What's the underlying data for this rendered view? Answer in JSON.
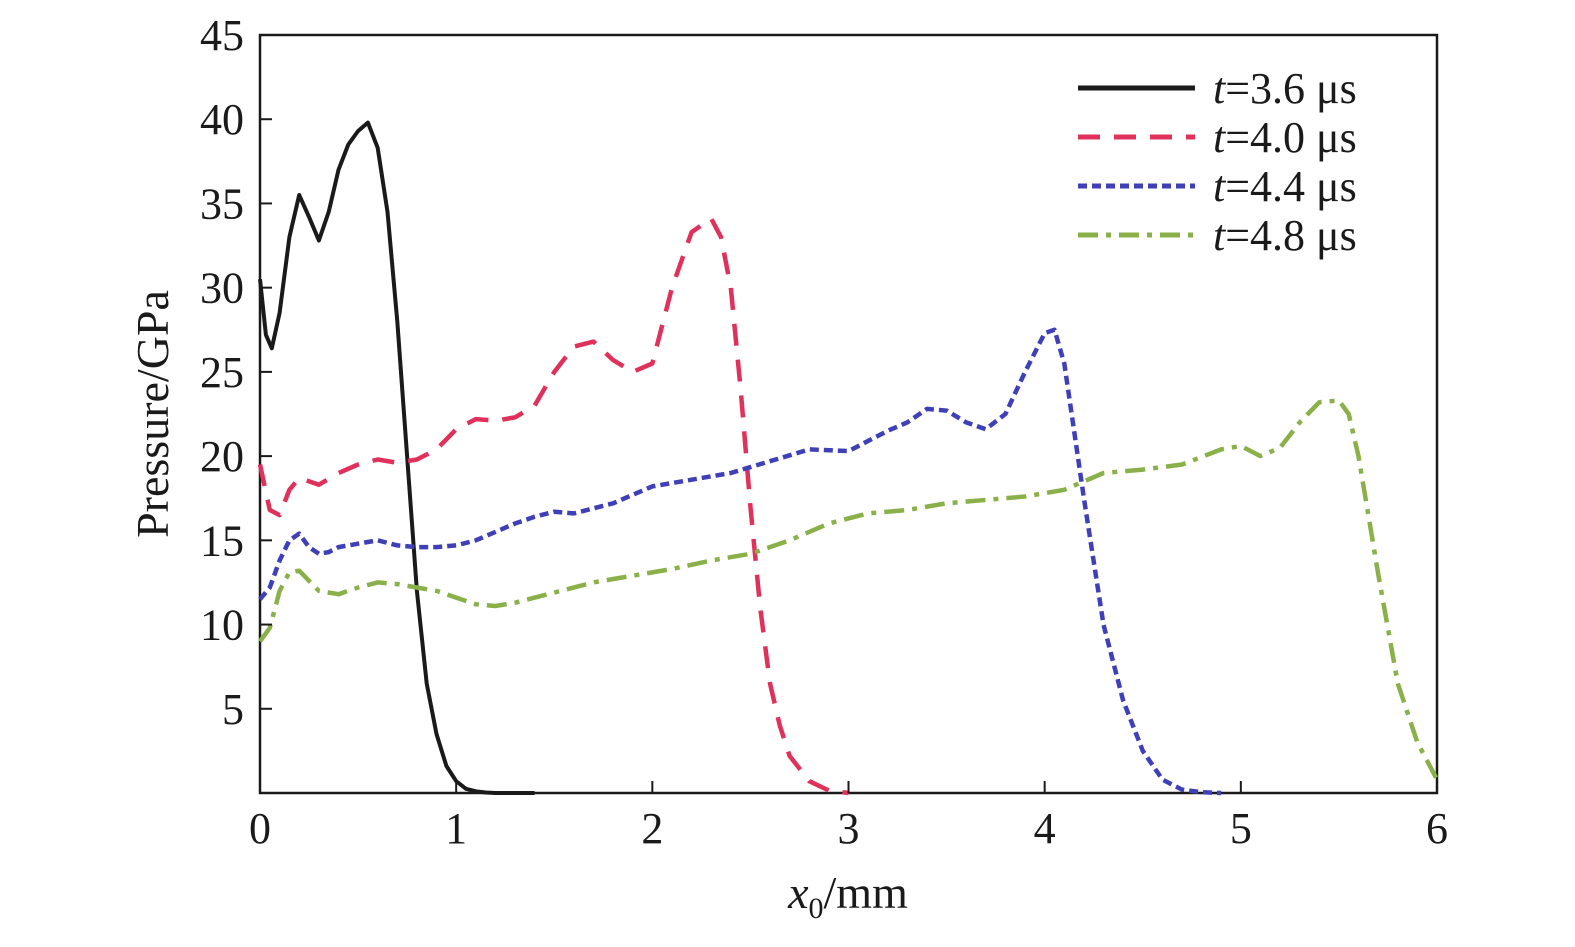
{
  "chart_data": {
    "type": "line",
    "xlabel_var": "x",
    "xlabel_sub": "0",
    "xlabel_unit": "/mm",
    "ylabel": "Pressure/GPa",
    "xlim": [
      0,
      6
    ],
    "ylim": [
      0,
      45
    ],
    "xticks": [
      0,
      1,
      2,
      3,
      4,
      5,
      6
    ],
    "yticks": [
      5,
      10,
      15,
      20,
      25,
      30,
      35,
      40,
      45
    ],
    "x_tick_labels": [
      "0",
      "1",
      "2",
      "3",
      "4",
      "5",
      "6"
    ],
    "y_tick_labels": [
      "5",
      "10",
      "15",
      "20",
      "25",
      "30",
      "35",
      "40",
      "45"
    ],
    "grid": false,
    "legend_position": "top-right",
    "series": [
      {
        "name": "t=3.6 μs",
        "label_var": "t",
        "label_rest": "=3.6 μs",
        "color": "#1a1a1a",
        "dash": "solid",
        "x": [
          0,
          0.03,
          0.06,
          0.1,
          0.15,
          0.2,
          0.25,
          0.3,
          0.35,
          0.4,
          0.45,
          0.5,
          0.55,
          0.6,
          0.65,
          0.7,
          0.75,
          0.8,
          0.85,
          0.9,
          0.95,
          1.0,
          1.05,
          1.1,
          1.15,
          1.2,
          1.3,
          1.4
        ],
        "y": [
          30.5,
          27.2,
          26.4,
          28.5,
          33.0,
          35.5,
          34.2,
          32.8,
          34.5,
          37.0,
          38.5,
          39.3,
          39.8,
          38.3,
          34.5,
          28.0,
          20.0,
          12.0,
          6.5,
          3.5,
          1.6,
          0.7,
          0.25,
          0.1,
          0.03,
          0.0,
          0.0,
          0.0
        ]
      },
      {
        "name": "t=4.0 μs",
        "label_var": "t",
        "label_rest": "=4.0 μs",
        "color": "#e0315a",
        "dash": "dashed",
        "x": [
          0,
          0.05,
          0.1,
          0.15,
          0.2,
          0.3,
          0.4,
          0.5,
          0.6,
          0.7,
          0.8,
          0.9,
          1.0,
          1.1,
          1.2,
          1.3,
          1.4,
          1.5,
          1.6,
          1.7,
          1.8,
          1.9,
          2.0,
          2.1,
          2.2,
          2.3,
          2.35,
          2.4,
          2.45,
          2.5,
          2.55,
          2.6,
          2.65,
          2.7,
          2.8,
          2.9,
          3.0
        ],
        "y": [
          19.5,
          16.8,
          16.5,
          18.0,
          18.7,
          18.3,
          19.0,
          19.5,
          19.8,
          19.6,
          19.8,
          20.4,
          21.6,
          22.2,
          22.1,
          22.3,
          23.0,
          25.0,
          26.5,
          26.8,
          25.7,
          25.0,
          25.5,
          30.0,
          33.3,
          34.1,
          33.0,
          30.0,
          24.0,
          17.0,
          11.0,
          6.5,
          4.0,
          2.2,
          0.7,
          0.15,
          0.0
        ]
      },
      {
        "name": "t=4.4 μs",
        "label_var": "t",
        "label_rest": "=4.4 μs",
        "color": "#3f3fb8",
        "dash": "dotted",
        "x": [
          0,
          0.05,
          0.1,
          0.15,
          0.2,
          0.25,
          0.3,
          0.35,
          0.4,
          0.5,
          0.6,
          0.7,
          0.8,
          0.9,
          1.0,
          1.1,
          1.2,
          1.3,
          1.4,
          1.5,
          1.6,
          1.8,
          2.0,
          2.2,
          2.4,
          2.6,
          2.8,
          3.0,
          3.2,
          3.3,
          3.4,
          3.5,
          3.6,
          3.7,
          3.8,
          3.9,
          4.0,
          4.05,
          4.1,
          4.2,
          4.3,
          4.4,
          4.5,
          4.6,
          4.7,
          4.8,
          4.9
        ],
        "y": [
          11.5,
          12.2,
          13.8,
          15.0,
          15.4,
          14.6,
          14.2,
          14.3,
          14.6,
          14.8,
          15.0,
          14.7,
          14.6,
          14.6,
          14.7,
          15.0,
          15.5,
          16.0,
          16.4,
          16.7,
          16.6,
          17.2,
          18.2,
          18.6,
          19.0,
          19.7,
          20.4,
          20.3,
          21.5,
          22.0,
          22.8,
          22.7,
          22.0,
          21.6,
          22.5,
          25.0,
          27.3,
          27.5,
          25.5,
          17.5,
          10.0,
          5.5,
          2.5,
          0.8,
          0.2,
          0.05,
          0.0
        ]
      },
      {
        "name": "t=4.8 μs",
        "label_var": "t",
        "label_rest": "=4.8 μs",
        "color": "#8ab04a",
        "dash": "dash-dot",
        "x": [
          0,
          0.05,
          0.1,
          0.15,
          0.2,
          0.25,
          0.3,
          0.4,
          0.5,
          0.6,
          0.7,
          0.8,
          0.9,
          1.0,
          1.1,
          1.2,
          1.3,
          1.5,
          1.7,
          1.9,
          2.1,
          2.3,
          2.5,
          2.7,
          2.9,
          3.1,
          3.3,
          3.5,
          3.7,
          3.9,
          4.1,
          4.3,
          4.5,
          4.7,
          4.9,
          5.0,
          5.1,
          5.2,
          5.3,
          5.4,
          5.5,
          5.55,
          5.6,
          5.7,
          5.8,
          5.9,
          6.0
        ],
        "y": [
          9.0,
          9.8,
          12.0,
          13.1,
          13.2,
          12.6,
          12.0,
          11.8,
          12.2,
          12.5,
          12.4,
          12.2,
          12.0,
          11.6,
          11.2,
          11.1,
          11.3,
          11.9,
          12.5,
          12.9,
          13.3,
          13.8,
          14.2,
          15.0,
          16.0,
          16.6,
          16.8,
          17.2,
          17.4,
          17.6,
          18.0,
          19.0,
          19.2,
          19.5,
          20.4,
          20.6,
          20.0,
          20.5,
          22.0,
          23.2,
          23.3,
          22.5,
          20.0,
          13.0,
          6.5,
          3.0,
          0.8
        ]
      }
    ]
  }
}
